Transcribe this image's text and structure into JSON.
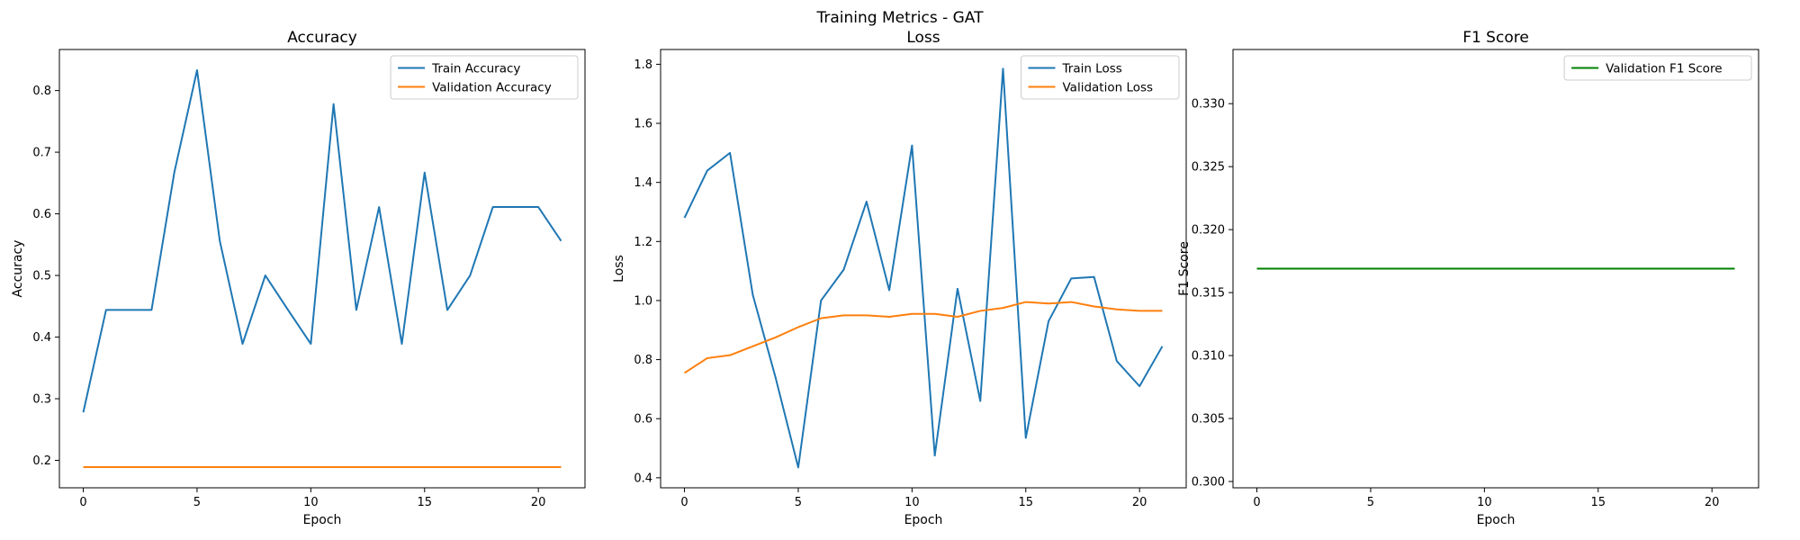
{
  "figure": {
    "title": "Training Metrics - GAT"
  },
  "chart_data": [
    {
      "type": "line",
      "title": "Accuracy",
      "xlabel": "Epoch",
      "ylabel": "Accuracy",
      "xlim": [
        -1.05,
        22.05
      ],
      "ylim": [
        0.1555,
        0.8666
      ],
      "xticks": [
        0,
        5,
        10,
        15,
        20
      ],
      "yticks": [
        0.2,
        0.3,
        0.4,
        0.5,
        0.6,
        0.7,
        0.8
      ],
      "ytick_decimals": 1,
      "legend_position": "top-right",
      "x": [
        0,
        1,
        2,
        3,
        4,
        5,
        6,
        7,
        8,
        9,
        10,
        11,
        12,
        13,
        14,
        15,
        16,
        17,
        18,
        19,
        20,
        21
      ],
      "series": [
        {
          "name": "Train Accuracy",
          "color": "#1f77b4",
          "values": [
            0.278,
            0.444,
            0.444,
            0.444,
            0.667,
            0.833,
            0.556,
            0.389,
            0.5,
            0.444,
            0.389,
            0.778,
            0.444,
            0.611,
            0.389,
            0.667,
            0.444,
            0.5,
            0.611,
            0.611,
            0.611,
            0.556
          ]
        },
        {
          "name": "Validation Accuracy",
          "color": "#ff7f0e",
          "values": [
            0.189,
            0.189,
            0.189,
            0.189,
            0.189,
            0.189,
            0.189,
            0.189,
            0.189,
            0.189,
            0.189,
            0.189,
            0.189,
            0.189,
            0.189,
            0.189,
            0.189,
            0.189,
            0.189,
            0.189,
            0.189,
            0.189
          ]
        }
      ]
    },
    {
      "type": "line",
      "title": "Loss",
      "xlabel": "Epoch",
      "ylabel": "Loss",
      "xlim": [
        -1.05,
        22.05
      ],
      "ylim": [
        0.366,
        1.85
      ],
      "xticks": [
        0,
        5,
        10,
        15,
        20
      ],
      "yticks": [
        0.4,
        0.6,
        0.8,
        1.0,
        1.2,
        1.4,
        1.6,
        1.8
      ],
      "ytick_decimals": 1,
      "legend_position": "top-right",
      "x": [
        0,
        1,
        2,
        3,
        4,
        5,
        6,
        7,
        8,
        9,
        10,
        11,
        12,
        13,
        14,
        15,
        16,
        17,
        18,
        19,
        20,
        21
      ],
      "series": [
        {
          "name": "Train Loss",
          "color": "#1f77b4",
          "values": [
            1.28,
            1.44,
            1.5,
            1.02,
            0.74,
            0.435,
            1.0,
            1.105,
            1.335,
            1.035,
            1.525,
            0.475,
            1.04,
            0.66,
            1.785,
            0.535,
            0.93,
            1.075,
            1.08,
            0.795,
            0.71,
            0.845
          ]
        },
        {
          "name": "Validation Loss",
          "color": "#ff7f0e",
          "values": [
            0.755,
            0.805,
            0.815,
            0.845,
            0.875,
            0.91,
            0.94,
            0.95,
            0.95,
            0.945,
            0.955,
            0.955,
            0.945,
            0.965,
            0.975,
            0.995,
            0.99,
            0.995,
            0.98,
            0.97,
            0.965,
            0.965
          ]
        }
      ]
    },
    {
      "type": "line",
      "title": "F1 Score",
      "xlabel": "Epoch",
      "ylabel": "F1 Score",
      "xlim": [
        -1.05,
        22.05
      ],
      "ylim": [
        0.2995,
        0.3343
      ],
      "xticks": [
        0,
        5,
        10,
        15,
        20
      ],
      "yticks": [
        0.3,
        0.305,
        0.31,
        0.315,
        0.32,
        0.325,
        0.33
      ],
      "ytick_decimals": 3,
      "legend_position": "top-right",
      "x": [
        0,
        1,
        2,
        3,
        4,
        5,
        6,
        7,
        8,
        9,
        10,
        11,
        12,
        13,
        14,
        15,
        16,
        17,
        18,
        19,
        20,
        21
      ],
      "series": [
        {
          "name": "Validation F1 Score",
          "color": "#008000",
          "values": [
            0.3169,
            0.3169,
            0.3169,
            0.3169,
            0.3169,
            0.3169,
            0.3169,
            0.3169,
            0.3169,
            0.3169,
            0.3169,
            0.3169,
            0.3169,
            0.3169,
            0.3169,
            0.3169,
            0.3169,
            0.3169,
            0.3169,
            0.3169,
            0.3169,
            0.3169
          ]
        }
      ]
    }
  ]
}
